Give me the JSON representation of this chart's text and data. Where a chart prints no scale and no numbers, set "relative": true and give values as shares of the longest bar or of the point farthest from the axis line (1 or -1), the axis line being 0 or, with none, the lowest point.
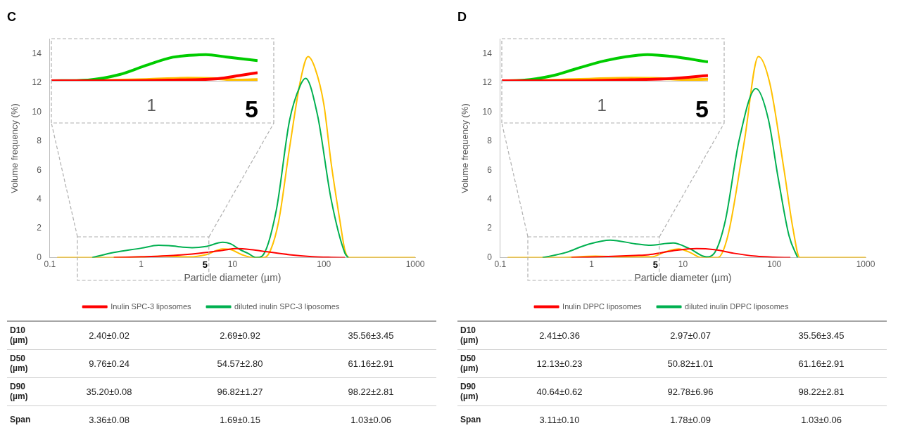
{
  "chart_data": [
    {
      "type": "line",
      "title": "C",
      "xlabel": "Particle diameter (µm)",
      "ylabel": "Volume frequency (%)",
      "log": "x",
      "xlim": [
        0.1,
        1000
      ],
      "xticks": [
        0.1,
        1,
        5,
        10,
        100,
        1000
      ],
      "ylim": [
        0,
        15
      ],
      "yticks": [
        0,
        2,
        4,
        6,
        8,
        10,
        12,
        14
      ],
      "legend": "bottom",
      "marker": "none",
      "line_style": "solid",
      "series": [
        {
          "name": "Inulin SPC-3 liposomes",
          "color": "#ff0000",
          "x": [
            0.5,
            1,
            1.9,
            3.6,
            5.1,
            7.8,
            11,
            16,
            24,
            42,
            74,
            120,
            170
          ],
          "values": [
            0,
            0.05,
            0.12,
            0.25,
            0.35,
            0.5,
            0.62,
            0.55,
            0.4,
            0.2,
            0.07,
            0.02,
            0
          ]
        },
        {
          "name": "diluted inulin SPC-3 liposomes",
          "color": "#00b050",
          "x": [
            0.29,
            0.5,
            1,
            1.55,
            2,
            3.6,
            5.1,
            7.8,
            9.5,
            12,
            14.7,
            18.2,
            21,
            30,
            42,
            55,
            63,
            85,
            120,
            170,
            185
          ],
          "values": [
            0,
            0.35,
            0.65,
            0.85,
            0.82,
            0.68,
            0.76,
            1.05,
            0.95,
            0.55,
            0.3,
            0,
            0.1,
            3.2,
            9.4,
            11.8,
            12.3,
            9.8,
            4,
            0.3,
            0
          ]
        },
        {
          "color": "#ffc000",
          "x": [
            0.12,
            0.4,
            1,
            1.8,
            3.4,
            5.1,
            7.8,
            9.6,
            12.7,
            16.9,
            22,
            26,
            32,
            42,
            56,
            67,
            80,
            100,
            120,
            150,
            170,
            190,
            1000
          ],
          "values": [
            0,
            0,
            0.05,
            0.1,
            0.05,
            0.2,
            0.6,
            0.55,
            0.2,
            0,
            0,
            0.5,
            2.5,
            7.5,
            12.3,
            13.8,
            13,
            10.5,
            6.5,
            2.5,
            0.5,
            0,
            0
          ]
        }
      ]
    },
    {
      "type": "line",
      "relative": true,
      "log": "x",
      "xlim": [
        0.2,
        5.5
      ],
      "xticks": [
        1,
        5
      ],
      "tick_labels": "x",
      "marker": "none",
      "line_style": "solid",
      "series": [
        {
          "color": "#ff0000",
          "x": [
            0.2,
            0.6,
            1.41,
            2.9,
            4.1,
            5.5
          ],
          "values": [
            0,
            0,
            0.03,
            0.08,
            0.2,
            0.31
          ]
        },
        {
          "color": "#00cc00",
          "x": [
            0.2,
            0.36,
            0.6,
            0.92,
            1.41,
            2.15,
            2.4,
            3.3,
            5.5
          ],
          "values": [
            0,
            0.03,
            0.24,
            0.59,
            0.9,
            0.99,
            1,
            0.91,
            0.77
          ]
        },
        {
          "color": "#ffc000",
          "x": [
            0.2,
            0.4,
            0.92,
            1.8,
            2.9,
            4.1,
            5.5
          ],
          "values": [
            0,
            0.01,
            0.05,
            0.1,
            0.08,
            0.03,
            0.05
          ]
        }
      ]
    },
    {
      "type": "other",
      "annotations": [
        "D10 (µm)",
        "2.40±0.02",
        "2.69±0.92",
        "35.56±3.45",
        "D50 (µm)",
        "9.76±0.24",
        "54.57±2.80",
        "61.16±2.91",
        "D90 (µm)",
        "35.20±0.08",
        "96.82±1.27",
        "98.22±2.81",
        "Span",
        "3.36±0.08",
        "1.69±0.15",
        "1.03±0.06"
      ]
    },
    {
      "type": "line",
      "title": "D",
      "xlabel": "Particle diameter (µm)",
      "ylabel": "Volume frequency (%)",
      "log": "x",
      "xlim": [
        0.1,
        1000
      ],
      "xticks": [
        0.1,
        1,
        5,
        10,
        100,
        1000
      ],
      "ylim": [
        0,
        15
      ],
      "yticks": [
        0,
        2,
        4,
        6,
        8,
        10,
        12,
        14
      ],
      "legend": "bottom",
      "marker": "none",
      "line_style": "solid",
      "series": [
        {
          "name": "Inulin DPPC liposomes",
          "color": "#ff0000",
          "x": [
            0.6,
            1.2,
            3,
            4.2,
            6,
            8.3,
            14,
            22,
            36,
            63,
            96,
            150
          ],
          "values": [
            0,
            0.05,
            0.15,
            0.2,
            0.35,
            0.5,
            0.62,
            0.55,
            0.3,
            0.1,
            0.03,
            0
          ]
        },
        {
          "name": "diluted inulin DPPC liposomes",
          "color": "#00b050",
          "x": [
            0.29,
            0.52,
            0.9,
            1.6,
            3,
            4.2,
            7.8,
            11.9,
            18,
            22,
            29,
            41,
            63,
            86,
            110,
            145,
            180
          ],
          "values": [
            0,
            0.35,
            0.9,
            1.2,
            0.95,
            0.85,
            1,
            0.6,
            0.05,
            0.3,
            2.5,
            8,
            11.6,
            9.5,
            5.5,
            1.5,
            0
          ]
        },
        {
          "color": "#ffc000",
          "x": [
            0.12,
            0.45,
            1.1,
            2.2,
            4.5,
            6.4,
            9,
            12,
            16,
            24,
            31,
            47,
            67,
            89,
            128,
            160,
            190,
            1000
          ],
          "values": [
            0,
            0,
            0.1,
            0.05,
            0.05,
            0.4,
            0.6,
            0.35,
            0,
            0,
            1.5,
            8,
            13.8,
            12,
            6,
            2,
            0,
            0
          ]
        }
      ]
    },
    {
      "type": "line",
      "relative": true,
      "log": "x",
      "xlim": [
        0.2,
        5.5
      ],
      "xticks": [
        1,
        5
      ],
      "tick_labels": "x",
      "marker": "none",
      "line_style": "solid",
      "series": [
        {
          "color": "#ff0000",
          "x": [
            0.2,
            0.67,
            1.6,
            3.07,
            5.5
          ],
          "values": [
            0,
            0,
            0.04,
            0.09,
            0.2
          ]
        },
        {
          "color": "#00cc00",
          "x": [
            0.2,
            0.28,
            0.44,
            0.67,
            1.04,
            1.47,
            2.08,
            3.07,
            5.5
          ],
          "values": [
            0,
            0.02,
            0.18,
            0.47,
            0.76,
            0.92,
            1,
            0.93,
            0.72
          ]
        },
        {
          "color": "#ffc000",
          "x": [
            0.2,
            0.44,
            0.86,
            1.6,
            2.5,
            3.9,
            5.5
          ],
          "values": [
            0,
            0.02,
            0.07,
            0.1,
            0.09,
            0.05,
            0.06
          ]
        }
      ]
    },
    {
      "type": "other",
      "annotations": [
        "D10 (µm)",
        "2.41±0.36",
        "2.97±0.07",
        "35.56±3.45",
        "D50 (µm)",
        "12.13±0.23",
        "50.82±1.01",
        "61.16±2.91",
        "D90 (µm)",
        "40.64±0.62",
        "92.78±6.96",
        "98.22±2.81",
        "Span",
        "3.11±0.10",
        "1.78±0.09",
        "1.03±0.06"
      ]
    }
  ]
}
